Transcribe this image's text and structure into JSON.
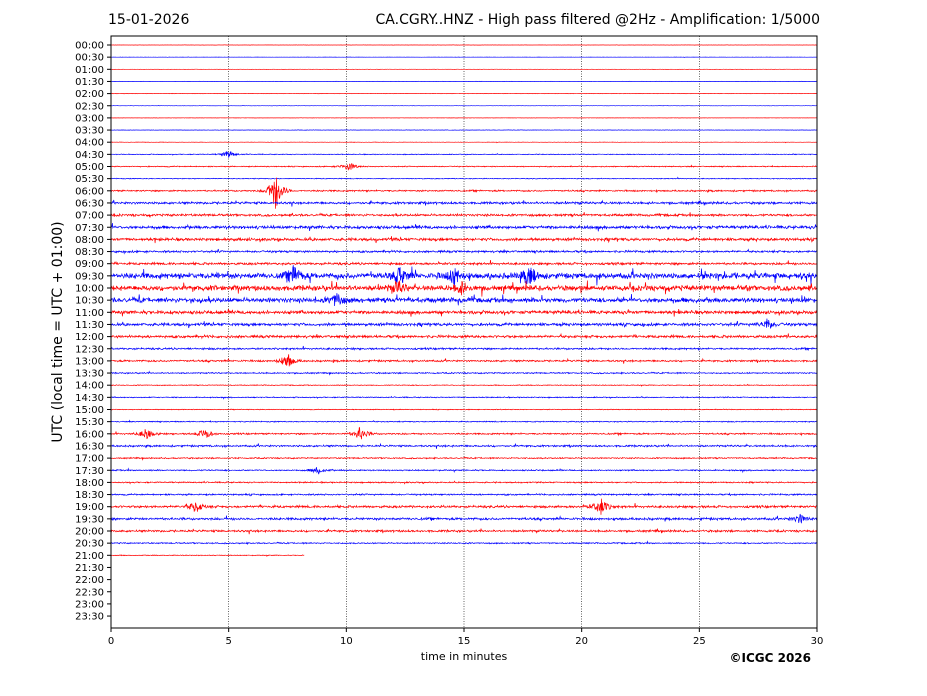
{
  "header": {
    "date": "15-01-2026",
    "title": "CA.CGRY..HNZ - High pass filtered @2Hz - Amplification: 1/5000"
  },
  "footer": {
    "copyright": "©ICGC 2026"
  },
  "colors": {
    "odd_trace": "#0000ff",
    "even_trace": "#ff0000",
    "gridline": "#000000"
  },
  "chart_data": {
    "type": "line",
    "title": "CA.CGRY..HNZ - High pass filtered @2Hz - Amplification: 1/5000",
    "xlabel": "time in minutes",
    "ylabel": "UTC (local time = UTC + 01:00)",
    "xlim": [
      0,
      30
    ],
    "x_ticks": [
      "0",
      "5",
      "10",
      "15",
      "20",
      "25",
      "30"
    ],
    "y_ticks": [
      "00:00",
      "00:30",
      "01:00",
      "01:30",
      "02:00",
      "02:30",
      "03:00",
      "03:30",
      "04:00",
      "04:30",
      "05:00",
      "05:30",
      "06:00",
      "06:30",
      "07:00",
      "07:30",
      "08:00",
      "08:30",
      "09:00",
      "09:30",
      "10:00",
      "10:30",
      "11:00",
      "11:30",
      "12:00",
      "12:30",
      "13:00",
      "13:30",
      "14:00",
      "14:30",
      "15:00",
      "15:30",
      "16:00",
      "16:30",
      "17:00",
      "17:30",
      "18:00",
      "18:30",
      "19:00",
      "19:30",
      "20:00",
      "20:30",
      "21:00",
      "21:30",
      "22:00",
      "22:30",
      "23:00",
      "23:30"
    ],
    "vertical_grid_minutes": [
      5,
      10,
      15,
      20,
      25
    ],
    "grid": "vertical dotted lines",
    "data_end_minute_at_21_00": 8.2,
    "noise_level_by_row": [
      0.08,
      0.1,
      0.1,
      0.1,
      0.1,
      0.1,
      0.1,
      0.15,
      0.15,
      0.3,
      0.4,
      0.3,
      0.6,
      0.9,
      0.9,
      1.2,
      1.1,
      0.8,
      0.9,
      2.2,
      2.0,
      1.8,
      1.3,
      1.1,
      1.0,
      0.7,
      0.7,
      0.5,
      0.3,
      0.4,
      0.3,
      0.4,
      0.6,
      0.7,
      0.5,
      0.5,
      0.5,
      0.6,
      0.9,
      0.9,
      0.8,
      0.5,
      0.3,
      0,
      0,
      0,
      0,
      0
    ],
    "events": [
      {
        "row": "04:30",
        "minute": 5.0,
        "amplitude": 0.5
      },
      {
        "row": "05:00",
        "minute": 10.1,
        "amplitude": 0.6
      },
      {
        "row": "06:00",
        "minute": 7.0,
        "amplitude": 2.5
      },
      {
        "row": "09:30",
        "minute": 7.8,
        "amplitude": 1.3
      },
      {
        "row": "09:30",
        "minute": 12.3,
        "amplitude": 1.1
      },
      {
        "row": "09:30",
        "minute": 14.6,
        "amplitude": 1.2
      },
      {
        "row": "09:30",
        "minute": 17.8,
        "amplitude": 1.4
      },
      {
        "row": "10:00",
        "minute": 12.2,
        "amplitude": 0.9
      },
      {
        "row": "10:00",
        "minute": 14.9,
        "amplitude": 0.8
      },
      {
        "row": "10:30",
        "minute": 9.6,
        "amplitude": 0.9
      },
      {
        "row": "11:30",
        "minute": 27.9,
        "amplitude": 0.7
      },
      {
        "row": "13:00",
        "minute": 7.5,
        "amplitude": 1.0
      },
      {
        "row": "16:00",
        "minute": 1.5,
        "amplitude": 0.7
      },
      {
        "row": "16:00",
        "minute": 4.0,
        "amplitude": 0.7
      },
      {
        "row": "16:00",
        "minute": 10.6,
        "amplitude": 0.9
      },
      {
        "row": "17:30",
        "minute": 8.8,
        "amplitude": 0.5
      },
      {
        "row": "19:00",
        "minute": 3.6,
        "amplitude": 0.8
      },
      {
        "row": "19:00",
        "minute": 20.8,
        "amplitude": 1.2
      },
      {
        "row": "19:30",
        "minute": 29.3,
        "amplitude": 0.6
      }
    ]
  }
}
